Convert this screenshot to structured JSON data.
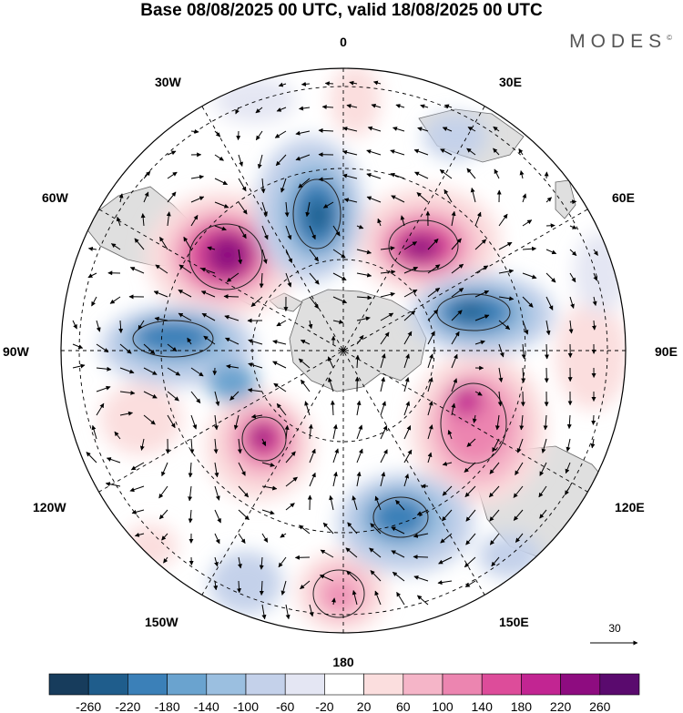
{
  "title": "Base 08/08/2025 00 UTC, valid 18/08/2025 00 UTC",
  "brand": "MODES",
  "brand_mark": "©",
  "longitudes": {
    "top": "0",
    "bottom": "180",
    "left": "90W",
    "right": "90E",
    "w30": "30W",
    "e30": "30E",
    "w60": "60W",
    "e60": "60E",
    "w120": "120W",
    "e120": "120E",
    "w150": "150W",
    "e150": "150E"
  },
  "reference_vector": "30",
  "colorbar": {
    "labels": [
      "-260",
      "-220",
      "-180",
      "-140",
      "-100",
      "-60",
      "-20",
      "20",
      "60",
      "100",
      "140",
      "180",
      "220",
      "260"
    ],
    "colors": [
      "#173c5c",
      "#1f5d8c",
      "#3b80b8",
      "#6aa3cf",
      "#9bbfe0",
      "#c4d1ea",
      "#e4e6f3",
      "#ffffff",
      "#fbdede",
      "#f5b5c8",
      "#ec85b0",
      "#dd4c9a",
      "#c22592",
      "#8e0c80",
      "#5a0a6e"
    ]
  },
  "colors": {
    "land": "#dfdfdf",
    "coast": "#666666",
    "grid": "#000000"
  }
}
